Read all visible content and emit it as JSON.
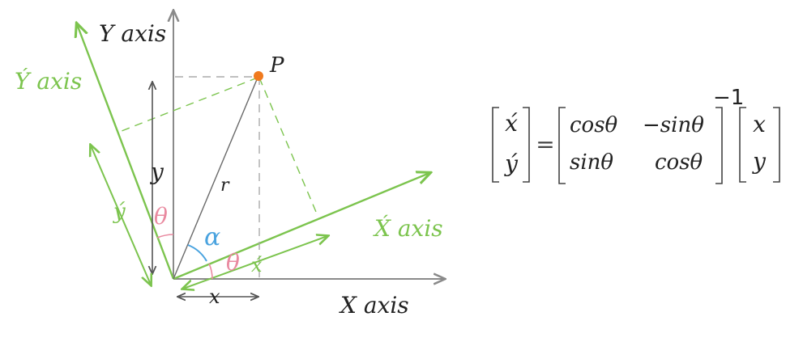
{
  "diagram": {
    "axes": {
      "y_axis": "Y axis",
      "x_axis": "X axis",
      "y_prime_axis": "Ý axis",
      "x_prime_axis": "X́ axis"
    },
    "point_label": "P",
    "radius_label": "r",
    "lengths": {
      "y": "y",
      "x": "x",
      "y_prime": "ý",
      "x_prime": "x́"
    },
    "angles": {
      "alpha": "α",
      "theta_x": "θ",
      "theta_y": "θ"
    }
  },
  "equation": {
    "lhs": [
      "x́",
      "ý"
    ],
    "equals": "=",
    "matrix": [
      [
        "cosθ",
        "−sinθ"
      ],
      [
        "sinθ",
        "cosθ"
      ]
    ],
    "exponent": "−1",
    "rhs": [
      "x",
      "y"
    ]
  },
  "colors": {
    "original_axes": "#8a8a8a",
    "rotated_axes": "#7cc44e",
    "point": "#f07a1e",
    "alpha_arc": "#4aa3df",
    "theta_arc": "#e98aa0",
    "ink": "#222222"
  }
}
